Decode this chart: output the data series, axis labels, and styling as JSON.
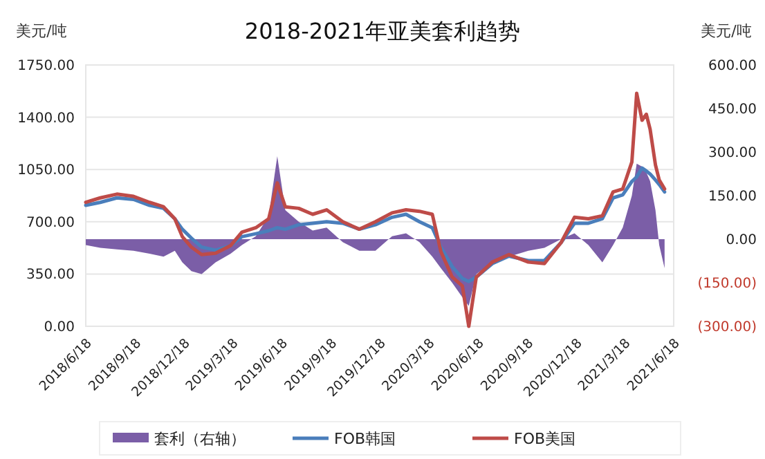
{
  "chart_data": {
    "type": "line",
    "title": "2018-2021年亚美套利趋势",
    "ylabel": "美元/吨",
    "y2label": "美元/吨",
    "x": [
      "2018-06-18",
      "2018-07-15",
      "2018-08-15",
      "2018-09-15",
      "2018-10-15",
      "2018-11-10",
      "2018-12-01",
      "2018-12-15",
      "2019-01-01",
      "2019-01-20",
      "2019-02-15",
      "2019-03-15",
      "2019-04-05",
      "2019-05-01",
      "2019-05-25",
      "2019-06-10",
      "2019-06-25",
      "2019-07-20",
      "2019-08-15",
      "2019-09-10",
      "2019-10-10",
      "2019-11-10",
      "2019-12-10",
      "2020-01-10",
      "2020-02-05",
      "2020-03-01",
      "2020-03-25",
      "2020-04-10",
      "2020-05-01",
      "2020-05-20",
      "2020-06-01",
      "2020-06-15",
      "2020-07-15",
      "2020-08-15",
      "2020-09-20",
      "2020-10-20",
      "2020-11-20",
      "2020-12-15",
      "2021-01-10",
      "2021-02-05",
      "2021-02-25",
      "2021-03-15",
      "2021-04-01",
      "2021-04-10",
      "2021-04-20",
      "2021-04-28",
      "2021-05-05",
      "2021-05-15",
      "2021-05-22",
      "2021-06-01"
    ],
    "series": [
      {
        "name": "套利（右轴）",
        "type": "area",
        "axis": "y2",
        "color": "#7b5ea7",
        "values": [
          -20,
          -30,
          -35,
          -40,
          -50,
          -60,
          -40,
          -80,
          -110,
          -120,
          -80,
          -50,
          -20,
          10,
          80,
          286,
          100,
          60,
          30,
          40,
          -10,
          -40,
          -40,
          10,
          20,
          -10,
          -60,
          -100,
          -150,
          -200,
          -230,
          -120,
          -80,
          -60,
          -40,
          -30,
          0,
          20,
          -20,
          -80,
          -20,
          40,
          150,
          260,
          250,
          230,
          200,
          100,
          -20,
          -100
        ]
      },
      {
        "name": "FOB韩国",
        "color": "#4a7ebb",
        "values": [
          810,
          830,
          860,
          850,
          810,
          790,
          720,
          650,
          590,
          530,
          510,
          540,
          600,
          620,
          640,
          660,
          650,
          680,
          690,
          700,
          690,
          650,
          680,
          730,
          750,
          700,
          660,
          530,
          400,
          320,
          300,
          330,
          420,
          470,
          440,
          440,
          560,
          690,
          690,
          720,
          860,
          880,
          970,
          1000,
          1060,
          1040,
          1020,
          980,
          950,
          900
        ]
      },
      {
        "name": "FOB美国",
        "color": "#be4b48",
        "values": [
          830,
          860,
          885,
          870,
          830,
          800,
          720,
          600,
          530,
          480,
          490,
          540,
          630,
          660,
          720,
          960,
          800,
          790,
          750,
          780,
          700,
          650,
          700,
          760,
          780,
          770,
          750,
          500,
          330,
          270,
          0,
          330,
          430,
          480,
          430,
          420,
          560,
          730,
          720,
          740,
          900,
          920,
          1100,
          1560,
          1380,
          1420,
          1320,
          1080,
          980,
          920
        ]
      }
    ],
    "xlim": [
      "2018-06-18",
      "2021-06-18"
    ],
    "xticks": [
      {
        "value": "2018-06-18",
        "label": "2018/6/18"
      },
      {
        "value": "2018-09-18",
        "label": "2018/9/18"
      },
      {
        "value": "2018-12-18",
        "label": "2018/12/18"
      },
      {
        "value": "2019-03-18",
        "label": "2019/3/18"
      },
      {
        "value": "2019-06-18",
        "label": "2019/6/18"
      },
      {
        "value": "2019-09-18",
        "label": "2019/9/18"
      },
      {
        "value": "2019-12-18",
        "label": "2019/12/18"
      },
      {
        "value": "2020-03-18",
        "label": "2020/3/18"
      },
      {
        "value": "2020-06-18",
        "label": "2020/6/18"
      },
      {
        "value": "2020-09-18",
        "label": "2020/9/18"
      },
      {
        "value": "2020-12-18",
        "label": "2020/12/18"
      },
      {
        "value": "2021-03-18",
        "label": "2021/3/18"
      },
      {
        "value": "2021-06-18",
        "label": "2021/6/18"
      }
    ],
    "ylim": [
      0,
      1750
    ],
    "yticks": [
      {
        "value": 0,
        "label": "0.00"
      },
      {
        "value": 350,
        "label": "350.00"
      },
      {
        "value": 700,
        "label": "700.00"
      },
      {
        "value": 1050,
        "label": "1050.00"
      },
      {
        "value": 1400,
        "label": "1400.00"
      },
      {
        "value": 1750,
        "label": "1750.00"
      }
    ],
    "y2lim": [
      -300,
      600
    ],
    "y2ticks": [
      {
        "value": -300,
        "label": "(300.00)"
      },
      {
        "value": -150,
        "label": "(150.00)"
      },
      {
        "value": 0,
        "label": "0.00"
      },
      {
        "value": 150,
        "label": "150.00"
      },
      {
        "value": 300,
        "label": "300.00"
      },
      {
        "value": 450,
        "label": "450.00"
      },
      {
        "value": 600,
        "label": "600.00"
      }
    ],
    "grid": "y",
    "legend": "bottom",
    "marker": "none",
    "line_style": "solid"
  }
}
